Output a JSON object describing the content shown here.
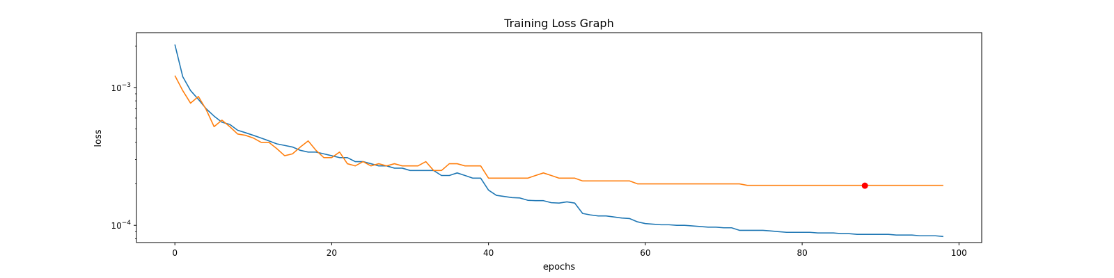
{
  "chart_data": {
    "type": "line",
    "title": "Training Loss Graph",
    "xlabel": "epochs",
    "ylabel": "loss",
    "xlim": [
      -4.9,
      102.9
    ],
    "ylim": [
      7.5e-05,
      0.0025
    ],
    "yscale": "log",
    "grid": false,
    "legend": "none",
    "x_ticks": [
      0,
      20,
      40,
      60,
      80,
      100
    ],
    "x_tick_labels": [
      "0",
      "20",
      "40",
      "60",
      "80",
      "100"
    ],
    "y_ticks": [
      0.001,
      0.0001
    ],
    "y_tick_labels": [
      {
        "base": "10",
        "exp": "−3"
      },
      {
        "base": "10",
        "exp": "−4"
      }
    ],
    "x": [
      0,
      1,
      2,
      3,
      4,
      5,
      6,
      7,
      8,
      9,
      10,
      11,
      12,
      13,
      14,
      15,
      16,
      17,
      18,
      19,
      20,
      21,
      22,
      23,
      24,
      25,
      26,
      27,
      28,
      29,
      30,
      31,
      32,
      33,
      34,
      35,
      36,
      37,
      38,
      39,
      40,
      41,
      42,
      43,
      44,
      45,
      46,
      47,
      48,
      49,
      50,
      51,
      52,
      53,
      54,
      55,
      56,
      57,
      58,
      59,
      60,
      61,
      62,
      63,
      64,
      65,
      66,
      67,
      68,
      69,
      70,
      71,
      72,
      73,
      74,
      75,
      76,
      77,
      78,
      79,
      80,
      81,
      82,
      83,
      84,
      85,
      86,
      87,
      88,
      89,
      90,
      91,
      92,
      93,
      94,
      95,
      96,
      97,
      98
    ],
    "series": [
      {
        "color": "#1f77b4",
        "values": [
          0.00205,
          0.0012,
          0.00095,
          0.00082,
          0.0007,
          0.00062,
          0.00056,
          0.00054,
          0.00049,
          0.00047,
          0.00045,
          0.00043,
          0.00041,
          0.00039,
          0.00038,
          0.00037,
          0.00035,
          0.00034,
          0.00034,
          0.00033,
          0.00032,
          0.00031,
          0.00031,
          0.00029,
          0.00029,
          0.00028,
          0.00027,
          0.00027,
          0.00026,
          0.00026,
          0.00025,
          0.00025,
          0.00025,
          0.00025,
          0.00023,
          0.00023,
          0.00024,
          0.00023,
          0.00022,
          0.00022,
          0.00018,
          0.000165,
          0.000162,
          0.000159,
          0.000158,
          0.000152,
          0.000151,
          0.000151,
          0.000146,
          0.000145,
          0.000148,
          0.000145,
          0.000122,
          0.000119,
          0.000117,
          0.000117,
          0.000115,
          0.000113,
          0.000112,
          0.000106,
          0.000103,
          0.000102,
          0.000101,
          0.000101,
          0.0001,
          0.0001,
          9.9e-05,
          9.8e-05,
          9.7e-05,
          9.7e-05,
          9.6e-05,
          9.6e-05,
          9.2e-05,
          9.2e-05,
          9.2e-05,
          9.2e-05,
          9.1e-05,
          9e-05,
          8.9e-05,
          8.9e-05,
          8.9e-05,
          8.9e-05,
          8.8e-05,
          8.8e-05,
          8.8e-05,
          8.7e-05,
          8.7e-05,
          8.6e-05,
          8.6e-05,
          8.6e-05,
          8.6e-05,
          8.6e-05,
          8.5e-05,
          8.5e-05,
          8.5e-05,
          8.4e-05,
          8.4e-05,
          8.4e-05,
          8.3e-05
        ]
      },
      {
        "color": "#ff7f0e",
        "values": [
          0.00122,
          0.00095,
          0.00077,
          0.00086,
          0.00069,
          0.00052,
          0.00058,
          0.00052,
          0.00046,
          0.00045,
          0.00043,
          0.0004,
          0.0004,
          0.00036,
          0.00032,
          0.00033,
          0.00037,
          0.00041,
          0.00035,
          0.00031,
          0.00031,
          0.00034,
          0.00028,
          0.00027,
          0.00029,
          0.00027,
          0.00028,
          0.00027,
          0.00028,
          0.00027,
          0.00027,
          0.00027,
          0.00029,
          0.00025,
          0.00025,
          0.00028,
          0.00028,
          0.00027,
          0.00027,
          0.00027,
          0.00022,
          0.00022,
          0.00022,
          0.00022,
          0.00022,
          0.00022,
          0.00023,
          0.00024,
          0.00023,
          0.00022,
          0.00022,
          0.00022,
          0.00021,
          0.00021,
          0.00021,
          0.00021,
          0.00021,
          0.00021,
          0.00021,
          0.0002,
          0.0002,
          0.0002,
          0.0002,
          0.0002,
          0.0002,
          0.0002,
          0.0002,
          0.0002,
          0.0002,
          0.0002,
          0.0002,
          0.0002,
          0.0002,
          0.000195,
          0.000195,
          0.000195,
          0.000195,
          0.000195,
          0.000195,
          0.000195,
          0.000195,
          0.000195,
          0.000195,
          0.000195,
          0.000195,
          0.000195,
          0.000195,
          0.000195,
          0.000195,
          0.000195,
          0.000195,
          0.000195,
          0.000195,
          0.000195,
          0.000195,
          0.000195,
          0.000195,
          0.000195,
          0.000195
        ]
      }
    ],
    "highlight_point": {
      "x": 88,
      "y": 0.000194,
      "color": "#ff0000"
    }
  }
}
